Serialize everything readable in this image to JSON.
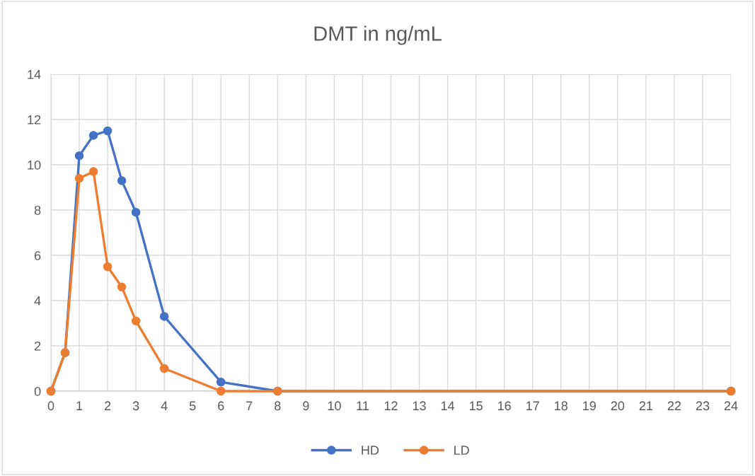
{
  "chart_data": {
    "type": "line",
    "title": "DMT in ng/mL",
    "x": [
      0,
      0.5,
      1,
      1.5,
      2,
      2.5,
      3,
      4,
      6,
      8,
      24
    ],
    "series": [
      {
        "name": "HD",
        "color": "#4472c4",
        "values": [
          0,
          1.7,
          10.4,
          11.3,
          11.5,
          9.3,
          7.9,
          3.3,
          0.4,
          0,
          0
        ]
      },
      {
        "name": "LD",
        "color": "#ed7d31",
        "values": [
          0,
          1.7,
          9.4,
          9.7,
          5.5,
          4.6,
          3.1,
          1.0,
          0,
          0,
          0
        ]
      }
    ],
    "xlim": [
      0,
      24
    ],
    "xticks": [
      0,
      1,
      2,
      3,
      4,
      5,
      6,
      7,
      8,
      9,
      10,
      11,
      12,
      13,
      14,
      15,
      16,
      17,
      18,
      19,
      20,
      21,
      22,
      23,
      24
    ],
    "ylim": [
      0,
      14
    ],
    "yticks": [
      0,
      2,
      4,
      6,
      8,
      10,
      12,
      14
    ],
    "grid": true,
    "legend": "bottom",
    "marker": "circle",
    "line_style": "solid"
  }
}
